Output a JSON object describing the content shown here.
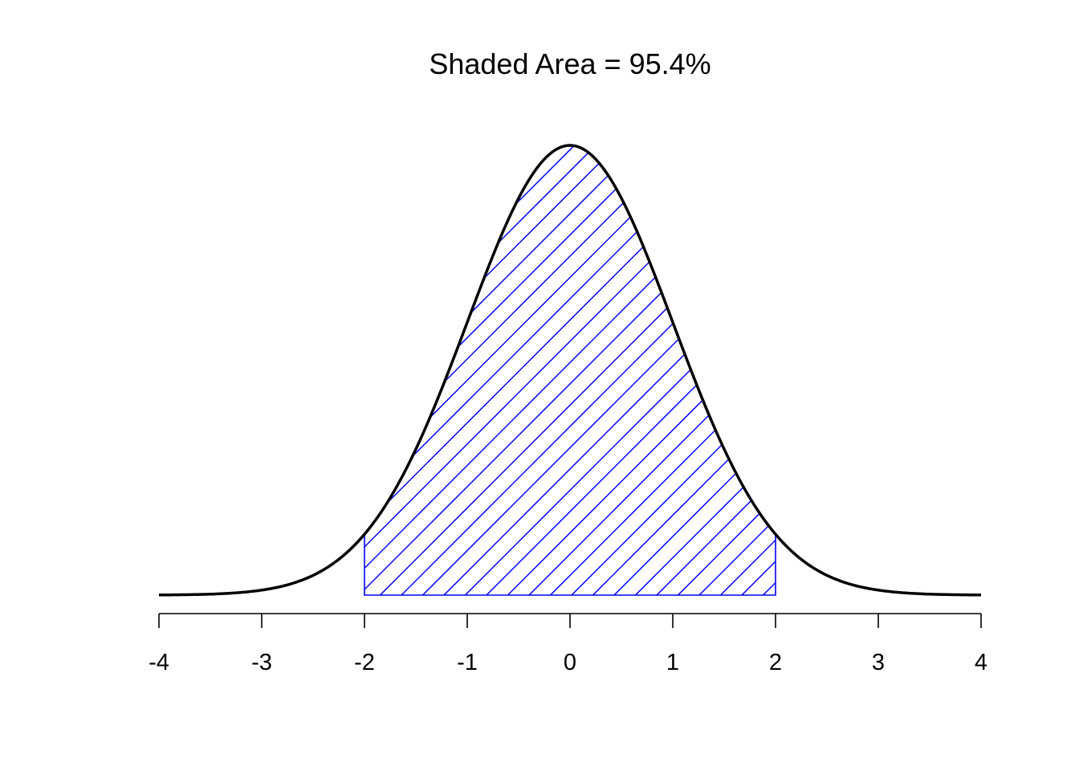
{
  "chart_data": {
    "type": "area",
    "title": "Shaded Area = 95.4%",
    "xlabel": "",
    "ylabel": "",
    "xlim": [
      -4,
      4
    ],
    "x_ticks": [
      -4,
      -3,
      -2,
      -1,
      0,
      1,
      2,
      3,
      4
    ],
    "x_tick_labels": [
      "-4",
      "-3",
      "-2",
      "-1",
      "0",
      "1",
      "2",
      "3",
      "4"
    ],
    "curve": {
      "distribution": "standard normal density",
      "mean": 0,
      "sd": 1,
      "color": "#000000"
    },
    "shaded_region": {
      "from": -2,
      "to": 2,
      "area_percent": 95.4,
      "fill_style": "diagonal hatch",
      "color": "#0000ff"
    },
    "y_axis_visible": false,
    "grid": false
  }
}
